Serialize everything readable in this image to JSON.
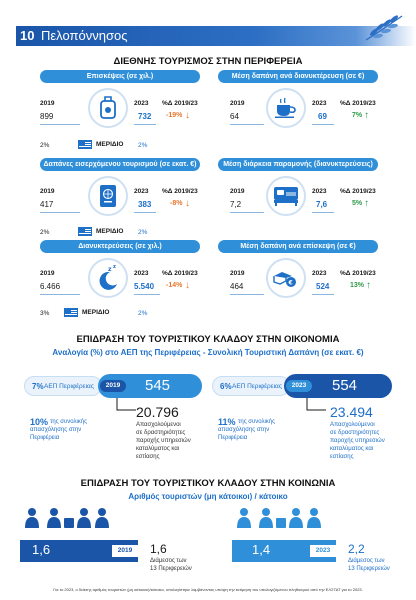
{
  "header": {
    "number": "10",
    "title": "Πελοπόννησος"
  },
  "tourism": {
    "title": "ΔΙΕΘΝΗΣ ΤΟΥΡΙΣΜΟΣ ΣΤΗΝ ΠΕΡΙΦΕΡΕΙΑ",
    "year_a": "2019",
    "year_b": "2023",
    "pct_label": "%Δ 2019/23",
    "meridio_label": "ΜΕΡΙΔΙΟ",
    "cards": [
      {
        "title": "Επισκέψεις (σε χιλ.)",
        "v2019": "899",
        "v2023": "732",
        "pct": "-19%",
        "dir": "down",
        "share_a": "2%",
        "share_b": "2%",
        "icon": "luggage-icon"
      },
      {
        "title": "Μέση δαπάνη ανά διανυκτέρευση (σε €)",
        "v2019": "64",
        "v2023": "69",
        "pct": "7%",
        "dir": "up",
        "icon": "coffee-cup-icon"
      },
      {
        "title": "Δαπάνες εισερχόμενου τουρισμού (σε εκατ. €)",
        "v2019": "417",
        "v2023": "383",
        "pct": "-8%",
        "dir": "down",
        "share_a": "2%",
        "share_b": "2%",
        "icon": "passport-icon"
      },
      {
        "title": "Μέση διάρκεια παραμονής (διανυκτερεύσεις)",
        "v2019": "7,2",
        "v2023": "7,6",
        "pct": "5%",
        "dir": "up",
        "icon": "bed-icon"
      },
      {
        "title": "Διανυκτερεύσεις (σε χιλ.)",
        "v2019": "6.466",
        "v2023": "5.540",
        "pct": "-14%",
        "dir": "down",
        "share_a": "3%",
        "share_b": "2%",
        "icon": "moon-icon"
      },
      {
        "title": "Μέση δαπάνη ανά επίσκεψη (σε €)",
        "v2019": "464",
        "v2023": "524",
        "pct": "13%",
        "dir": "up",
        "icon": "money-hand-icon"
      }
    ]
  },
  "economy": {
    "title": "ΕΠΙΔΡΑΣΗ ΤΟΥ ΤΟΥΡΙΣΤΙΚΟΥ ΚΛΑΔΟΥ ΣΤΗΝ ΟΙΚΟΝΟΜΙΑ",
    "subtitle": "Αναλογία (%) στο ΑΕΠ της Περιφέρειας - Συνολική Τουριστική Δαπάνη (σε εκατ. €)",
    "left": {
      "pct": "7%",
      "label": "ΑΕΠ Περιφέρειας",
      "year": "2019",
      "value": "545",
      "emp_pct": "10%",
      "emp_text1": "της συνολικής",
      "emp_text2": "απασχόλησης στην",
      "emp_text3": "Περιφέρεια",
      "jobs": "20.796",
      "jobs_text1": "Απασχολούμενοι",
      "jobs_text2": "σε δραστηριότητες",
      "jobs_text3": "παροχής υπηρεσιών",
      "jobs_text4": "καταλύματος και",
      "jobs_text5": "εστίασης"
    },
    "right": {
      "pct": "6%",
      "label": "ΑΕΠ Περιφέρειας",
      "year": "2023",
      "value": "554",
      "emp_pct": "11%",
      "emp_text1": "της συνολικής",
      "emp_text2": "απασχόλησης στην",
      "emp_text3": "Περιφέρεια",
      "jobs": "23.494",
      "jobs_text1": "Απασχολούμενοι",
      "jobs_text2": "σε δραστηριότητες",
      "jobs_text3": "παροχής υπηρεσιών",
      "jobs_text4": "καταλύματος και",
      "jobs_text5": "εστίασης"
    }
  },
  "society": {
    "title": "ΕΠΙΔΡΑΣΗ ΤΟΥ ΤΟΥΡΙΣΤΙΚΟΥ ΚΛΑΔΟΥ ΣΤΗΝ ΚΟΙΝΩΝΙΑ",
    "subtitle": "Αριθμός τουριστών (μη κάτοικοι) / κάτοικο",
    "left": {
      "value": "1,6",
      "year": "2019",
      "stay": "1,6",
      "stay_text1": "Διάμεσος των",
      "stay_text2": "13 Περιφερειών"
    },
    "right": {
      "value": "1,4",
      "year": "2023",
      "stay": "2,2",
      "stay_text1": "Διάμεσος των",
      "stay_text2": "13 Περιφερειών"
    }
  },
  "footer": "Για το 2023, ο δείκτης αριθμός τουριστών (μη κάτοικοι)/κάτοικο, υπολογίστηκε λαμβάνοντας υπόψη την εκτίμηση του υπολογιζόμενου πληθυσμού από την ΕΛΣΤΑΤ για το 2023."
}
